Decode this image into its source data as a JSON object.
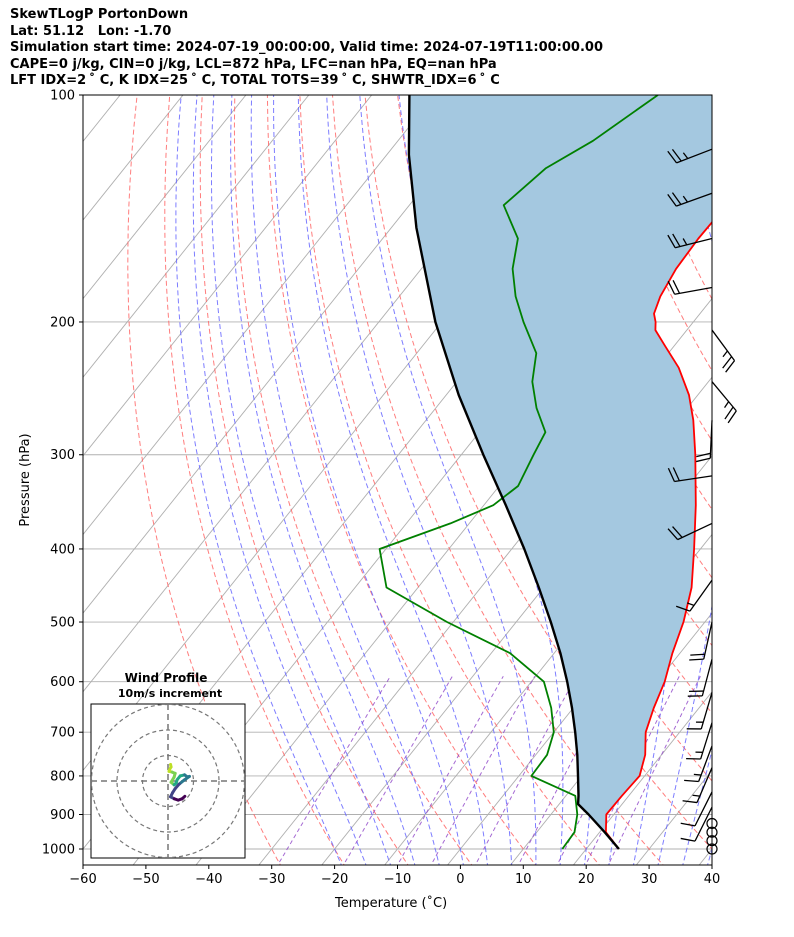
{
  "header": {
    "title": "SkewTLogP PortonDown",
    "latlon": "Lat: 51.12   Lon: -1.70",
    "times": "Simulation start time: 2024-07-19_00:00:00, Valid time: 2024-07-19T11:00:00.00",
    "cape": "CAPE=0 j/kg, CIN=0 j/kg, LCL=872 hPa, LFC=nan hPa, EQ=nan hPa",
    "indices": "LFT IDX=2 ˚ C, K IDX=25 ˚ C, TOTAL TOTS=39 ˚ C, SHWTR_IDX=6 ˚ C"
  },
  "chart_data": {
    "type": "line",
    "subtype": "skew-T log-P diagram",
    "xlabel": "Temperature ($^\\circ$C)",
    "xlabel_display": "Temperature (˚C)",
    "ylabel": "Pressure (hPa)",
    "xlim": [
      -60,
      40
    ],
    "ylim": [
      1050,
      100
    ],
    "y_scale": "log",
    "x_ticks": [
      -60,
      -50,
      -40,
      -30,
      -20,
      -10,
      0,
      10,
      20,
      30,
      40
    ],
    "y_ticks": [
      1000,
      900,
      800,
      700,
      600,
      500,
      400,
      300,
      200,
      100
    ],
    "grid": true,
    "colors": {
      "temperature": "#ff0000",
      "dewpoint": "#008000",
      "parcel": "#000000",
      "cape_fill": "#a4c8e0",
      "dry_adiabats": "#ff6666",
      "moist_adiabats": "#6666ff",
      "mixing_ratio": "#8f45c8",
      "isotherms": "#b0b0b0"
    },
    "series": [
      {
        "points": [
          [
            1000,
            25.2
          ],
          [
            950,
            21.0
          ],
          [
            900,
            18.8
          ],
          [
            850,
            18.9
          ],
          [
            800,
            19.2
          ],
          [
            750,
            17.4
          ],
          [
            700,
            14.6
          ],
          [
            650,
            12.8
          ],
          [
            600,
            11.2
          ],
          [
            550,
            8.8
          ],
          [
            500,
            6.6
          ],
          [
            450,
            3.5
          ],
          [
            400,
            -1.0
          ],
          [
            350,
            -6.3
          ],
          [
            300,
            -12.8
          ],
          [
            270,
            -17.5
          ],
          [
            250,
            -21.4
          ],
          [
            230,
            -26.5
          ],
          [
            215,
            -31.5
          ],
          [
            205,
            -35.0
          ],
          [
            200,
            -36.0
          ],
          [
            195,
            -37.3
          ],
          [
            185,
            -38.5
          ],
          [
            170,
            -39.5
          ],
          [
            155,
            -39.8
          ],
          [
            140,
            -39.6
          ],
          [
            125,
            -39.0
          ],
          [
            115,
            -38.7
          ],
          [
            100,
            -37.5
          ]
        ]
      },
      {
        "points": [
          [
            1000,
            16.2
          ],
          [
            950,
            16.0
          ],
          [
            900,
            14.2
          ],
          [
            850,
            11.5
          ],
          [
            800,
            2.0
          ],
          [
            750,
            1.8
          ],
          [
            700,
            0.0
          ],
          [
            650,
            -3.5
          ],
          [
            600,
            -8.0
          ],
          [
            550,
            -17.0
          ],
          [
            500,
            -31.0
          ],
          [
            450,
            -45.0
          ],
          [
            400,
            -51.0
          ],
          [
            370,
            -43.0
          ],
          [
            350,
            -38.5
          ],
          [
            330,
            -37.0
          ],
          [
            300,
            -38.5
          ],
          [
            280,
            -39.5
          ],
          [
            260,
            -44.0
          ],
          [
            240,
            -48.0
          ],
          [
            220,
            -51.0
          ],
          [
            200,
            -57.0
          ],
          [
            185,
            -61.5
          ],
          [
            170,
            -65.5
          ],
          [
            155,
            -68.5
          ],
          [
            140,
            -75.0
          ],
          [
            125,
            -73.0
          ],
          [
            115,
            -69.0
          ],
          [
            100,
            -64.5
          ]
        ]
      },
      {
        "points": [
          [
            1000,
            25.2
          ],
          [
            950,
            20.8
          ],
          [
            900,
            16.0
          ],
          [
            872,
            13.0
          ],
          [
            850,
            12.0
          ],
          [
            800,
            9.4
          ],
          [
            750,
            6.6
          ],
          [
            700,
            3.4
          ],
          [
            650,
            -0.2
          ],
          [
            600,
            -4.3
          ],
          [
            550,
            -9.0
          ],
          [
            500,
            -14.5
          ],
          [
            450,
            -20.8
          ],
          [
            400,
            -28.0
          ],
          [
            350,
            -36.5
          ],
          [
            300,
            -46.5
          ],
          [
            250,
            -58.0
          ],
          [
            200,
            -71.0
          ],
          [
            150,
            -86.0
          ],
          [
            120,
            -96.5
          ],
          [
            100,
            -104.0
          ]
        ]
      }
    ],
    "wind_barbs": [
      {
        "p": 1000,
        "symbol": "calm"
      },
      {
        "p": 975,
        "symbol": "calm"
      },
      {
        "p": 950,
        "symbol": "calm"
      },
      {
        "p": 925,
        "symbol": "calm"
      },
      {
        "p": 880,
        "u": 2.0,
        "v": 4.0
      },
      {
        "p": 840,
        "u": 2.5,
        "v": 5.0
      },
      {
        "p": 780,
        "u": 3.0,
        "v": 7.0
      },
      {
        "p": 730,
        "u": 3.0,
        "v": 8.0
      },
      {
        "p": 680,
        "u": 2.5,
        "v": 8.0
      },
      {
        "p": 620,
        "u": 2.5,
        "v": 8.5
      },
      {
        "p": 560,
        "u": 2.5,
        "v": 9.5
      },
      {
        "p": 500,
        "u": 2.0,
        "v": 9.0
      },
      {
        "p": 440,
        "u": 5.0,
        "v": 7.0
      },
      {
        "p": 370,
        "u": 8.5,
        "v": 4.0
      },
      {
        "p": 320,
        "u": 10.0,
        "v": 1.5
      },
      {
        "p": 270,
        "u": 0.5,
        "v": 11.0
      },
      {
        "p": 240,
        "u": -7.5,
        "v": 9.0
      },
      {
        "p": 205,
        "u": -7.0,
        "v": 9.5
      },
      {
        "p": 180,
        "u": 11.0,
        "v": 2.0
      },
      {
        "p": 155,
        "u": 12.0,
        "v": 3.0
      },
      {
        "p": 135,
        "u": 12.5,
        "v": 4.5
      },
      {
        "p": 118,
        "u": 13.0,
        "v": 5.0
      }
    ],
    "inset": {
      "title": "Wind Profile",
      "subtitle": "10m/s increment",
      "rings_ms": [
        10,
        20,
        30
      ],
      "hodograph_uv": [
        [
          1.0,
          6.5
        ],
        [
          1.2,
          5.5
        ],
        [
          0.6,
          4.5
        ],
        [
          0.4,
          3.8
        ],
        [
          1.6,
          3.5
        ],
        [
          2.8,
          3.0
        ],
        [
          2.4,
          1.5
        ],
        [
          1.2,
          -0.5
        ],
        [
          2.4,
          -1.5
        ],
        [
          3.2,
          -0.8
        ],
        [
          3.6,
          0.5
        ],
        [
          4.8,
          2.0
        ],
        [
          6.5,
          2.4
        ],
        [
          7.6,
          1.6
        ],
        [
          8.4,
          1.8
        ],
        [
          6.4,
          0.4
        ],
        [
          4.4,
          -1.2
        ],
        [
          2.8,
          -3.0
        ],
        [
          1.8,
          -4.6
        ],
        [
          1.0,
          -6.2
        ],
        [
          2.5,
          -7.0
        ],
        [
          4.0,
          -7.5
        ],
        [
          5.5,
          -7.0
        ],
        [
          6.6,
          -6.0
        ]
      ]
    }
  }
}
